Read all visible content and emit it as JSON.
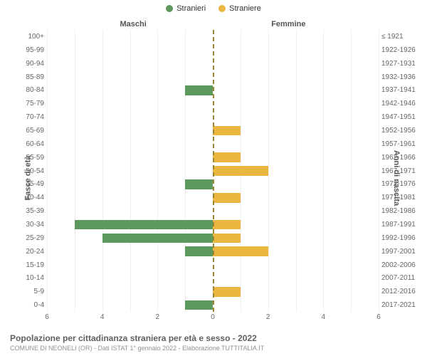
{
  "legend": {
    "male": {
      "label": "Stranieri",
      "color": "#5d995d"
    },
    "female": {
      "label": "Straniere",
      "color": "#eab640"
    }
  },
  "sections": {
    "left": "Maschi",
    "right": "Femmine"
  },
  "axis_titles": {
    "left": "Fasce di età",
    "right": "Anni di nascita"
  },
  "chart": {
    "type": "population-pyramid",
    "xmax": 6,
    "xticks_left": [
      6,
      4,
      2,
      0
    ],
    "xticks_right": [
      0,
      2,
      4,
      6
    ],
    "background_color": "#ffffff",
    "grid_color": "#eeeeee",
    "center_line_color": "#9a8836",
    "bar_height_pct": 72,
    "label_fontsize": 10,
    "tick_fontsize": 10
  },
  "rows": [
    {
      "age": "100+",
      "birth": "≤ 1921",
      "m": 0,
      "f": 0
    },
    {
      "age": "95-99",
      "birth": "1922-1926",
      "m": 0,
      "f": 0
    },
    {
      "age": "90-94",
      "birth": "1927-1931",
      "m": 0,
      "f": 0
    },
    {
      "age": "85-89",
      "birth": "1932-1936",
      "m": 0,
      "f": 0
    },
    {
      "age": "80-84",
      "birth": "1937-1941",
      "m": 1,
      "f": 0
    },
    {
      "age": "75-79",
      "birth": "1942-1946",
      "m": 0,
      "f": 0
    },
    {
      "age": "70-74",
      "birth": "1947-1951",
      "m": 0,
      "f": 0
    },
    {
      "age": "65-69",
      "birth": "1952-1956",
      "m": 0,
      "f": 1
    },
    {
      "age": "60-64",
      "birth": "1957-1961",
      "m": 0,
      "f": 0
    },
    {
      "age": "55-59",
      "birth": "1962-1966",
      "m": 0,
      "f": 1
    },
    {
      "age": "50-54",
      "birth": "1967-1971",
      "m": 0,
      "f": 2
    },
    {
      "age": "45-49",
      "birth": "1972-1976",
      "m": 1,
      "f": 0
    },
    {
      "age": "40-44",
      "birth": "1977-1981",
      "m": 0,
      "f": 1
    },
    {
      "age": "35-39",
      "birth": "1982-1986",
      "m": 0,
      "f": 0
    },
    {
      "age": "30-34",
      "birth": "1987-1991",
      "m": 5,
      "f": 1
    },
    {
      "age": "25-29",
      "birth": "1992-1996",
      "m": 4,
      "f": 1
    },
    {
      "age": "20-24",
      "birth": "1997-2001",
      "m": 1,
      "f": 2
    },
    {
      "age": "15-19",
      "birth": "2002-2006",
      "m": 0,
      "f": 0
    },
    {
      "age": "10-14",
      "birth": "2007-2011",
      "m": 0,
      "f": 0
    },
    {
      "age": "5-9",
      "birth": "2012-2016",
      "m": 0,
      "f": 1
    },
    {
      "age": "0-4",
      "birth": "2017-2021",
      "m": 1,
      "f": 0
    }
  ],
  "footer": {
    "title": "Popolazione per cittadinanza straniera per età e sesso - 2022",
    "subtitle": "COMUNE DI NEONELI (OR) - Dati ISTAT 1° gennaio 2022 - Elaborazione TUTTITALIA.IT"
  }
}
